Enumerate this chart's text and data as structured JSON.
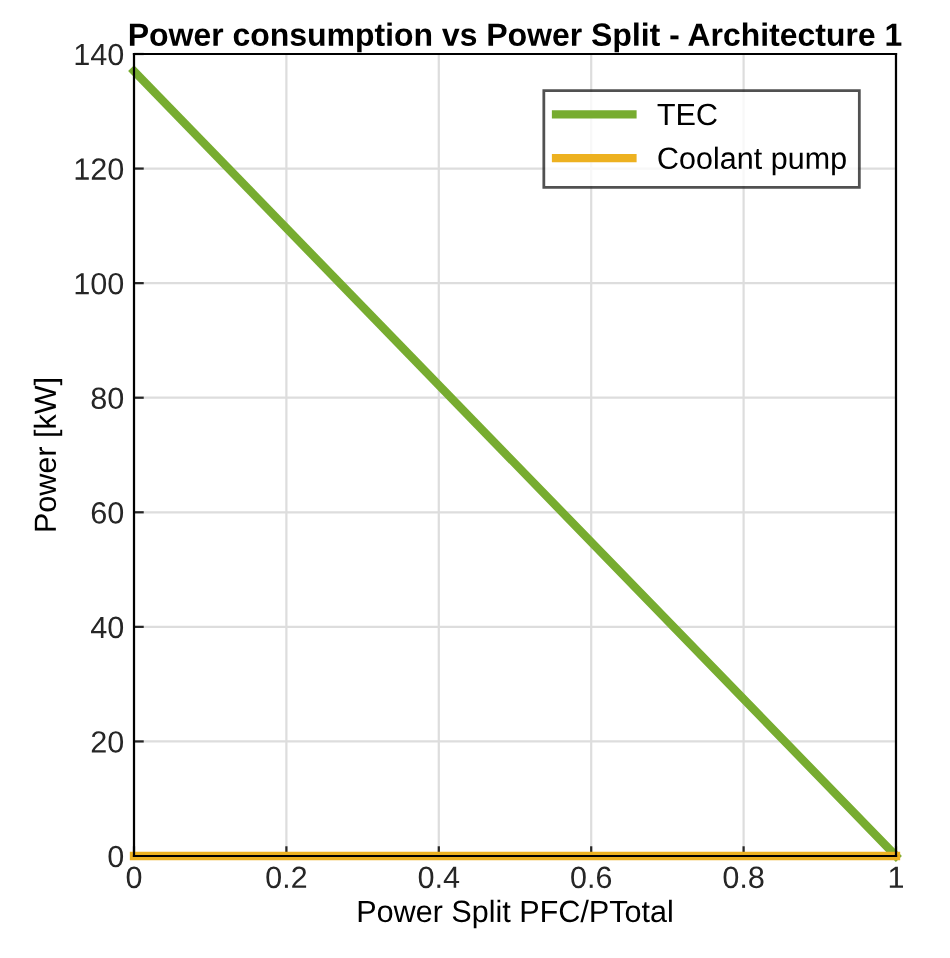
{
  "chart_data": {
    "type": "line",
    "title": "Power consumption vs Power Split - Architecture 1",
    "xlabel": "Power Split PFC/PTotal",
    "ylabel": "Power [kW]",
    "x": [
      0,
      1
    ],
    "series": [
      {
        "name": "TEC",
        "color": "#77ac30",
        "values": [
          137,
          0
        ]
      },
      {
        "name": "Coolant pump",
        "color": "#edb120",
        "values": [
          0,
          0
        ]
      }
    ],
    "xlim": [
      0,
      1
    ],
    "ylim": [
      0,
      140
    ],
    "xticks": [
      0,
      0.2,
      0.4,
      0.6,
      0.8,
      1
    ],
    "yticks": [
      0,
      20,
      40,
      60,
      80,
      100,
      120,
      140
    ],
    "grid": true,
    "legend": "top right",
    "line_style": "solid",
    "marker": "none"
  }
}
